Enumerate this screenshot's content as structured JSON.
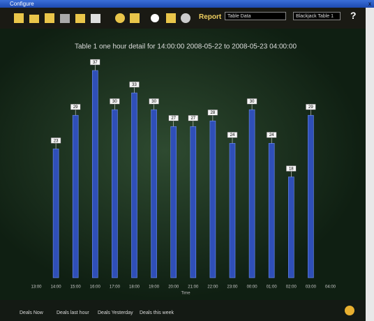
{
  "window": {
    "title": "Configure",
    "close": "x"
  },
  "toolbar": {
    "report": "Report",
    "source": "Table Data",
    "table": "Blackjack Table 1",
    "help": "?"
  },
  "chart_data": {
    "type": "bar",
    "title": "Table 1 one hour detail for 14:00:00 2008-05-22 to 2008-05-23 04:00:00",
    "x_label": "Time",
    "categories": [
      "13:00",
      "14:00",
      "15:00",
      "16:00",
      "17:00",
      "18:00",
      "19:00",
      "20:00",
      "21:00",
      "22:00",
      "23:00",
      "00:00",
      "01:00",
      "02:00",
      "03:00",
      "04:00"
    ],
    "values": [
      null,
      23,
      29,
      37,
      30,
      33,
      30,
      27,
      27,
      28,
      24,
      30,
      24,
      18,
      29,
      null
    ],
    "color": "#2f4fb8"
  },
  "footer": {
    "buttons": [
      "Deals Now",
      "Deals last hour",
      "Deals Yesterday",
      "Deals this week"
    ]
  }
}
